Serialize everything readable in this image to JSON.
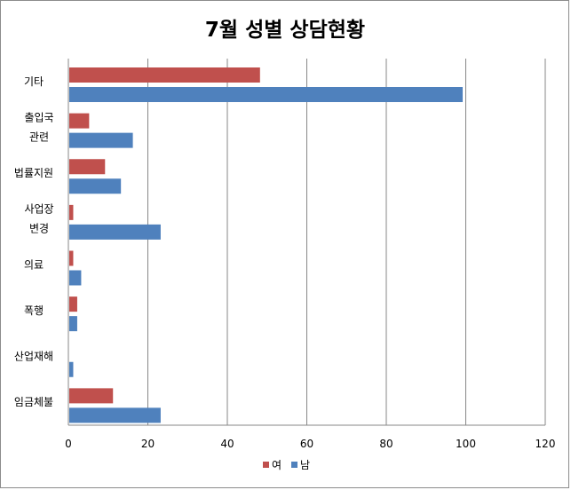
{
  "chart_data": {
    "type": "bar",
    "orientation": "horizontal",
    "title": "7월 성별 상담현황",
    "categories": [
      [
        "기타"
      ],
      [
        "출입국",
        "관련"
      ],
      [
        "법률지원"
      ],
      [
        "사업장",
        "변경"
      ],
      [
        "의료"
      ],
      [
        "폭행"
      ],
      [
        "산업재해"
      ],
      [
        "임금체불"
      ]
    ],
    "series": [
      {
        "name": "여",
        "color": "#C0504D",
        "values": [
          48,
          5,
          9,
          1,
          1,
          2,
          0,
          11
        ]
      },
      {
        "name": "남",
        "color": "#4F81BD",
        "values": [
          99,
          16,
          13,
          23,
          3,
          2,
          1,
          23
        ]
      }
    ],
    "xlim": [
      0,
      120
    ],
    "xticks": [
      0,
      20,
      40,
      60,
      80,
      100,
      120
    ],
    "grid": true,
    "legend": "bottom"
  }
}
